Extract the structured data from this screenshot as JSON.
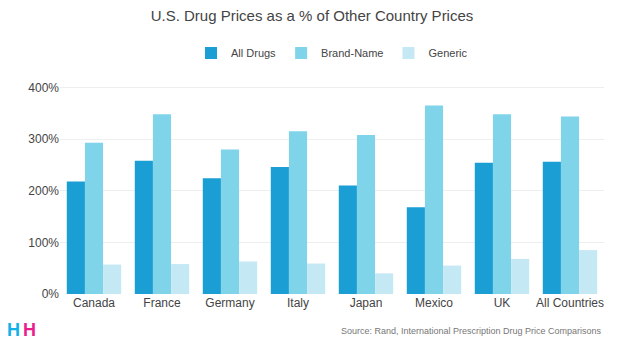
{
  "chart_data": {
    "type": "bar",
    "title": "U.S. Drug Prices as a % of Other Country Prices",
    "categories": [
      "Canada",
      "France",
      "Germany",
      "Italy",
      "Japan",
      "Mexico",
      "UK",
      "All Countries"
    ],
    "series": [
      {
        "name": "All Drugs",
        "color": "#1a9ed4",
        "values": [
          218,
          258,
          224,
          246,
          210,
          168,
          254,
          256
        ]
      },
      {
        "name": "Brand-Name",
        "color": "#7fd4ea",
        "values": [
          293,
          348,
          280,
          315,
          308,
          365,
          348,
          344
        ]
      },
      {
        "name": "Generic",
        "color": "#c5e8f5",
        "values": [
          57,
          58,
          63,
          59,
          40,
          55,
          68,
          85
        ]
      }
    ],
    "ylim": [
      0,
      430
    ],
    "yticks": [
      {
        "value": 0,
        "label": "0%"
      },
      {
        "value": 100,
        "label": "100%"
      },
      {
        "value": 200,
        "label": "200%"
      },
      {
        "value": 300,
        "label": "300%"
      },
      {
        "value": 400,
        "label": "400%"
      }
    ],
    "grid": true,
    "legend": "top",
    "annotations": [
      {
        "text": "Source: Rand, International Prescription Drug Price Comparisons"
      },
      {
        "text": "H",
        "color": "#12b0e8"
      },
      {
        "text": "H",
        "color": "#e91e8c"
      }
    ]
  }
}
